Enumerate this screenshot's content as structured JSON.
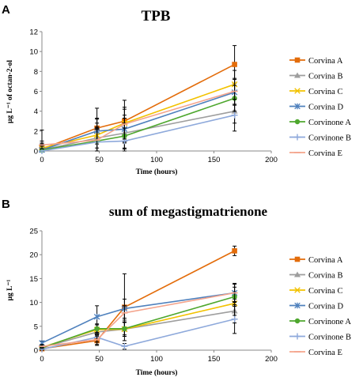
{
  "chart_data": [
    {
      "panel": "A",
      "type": "line",
      "title": "TPB",
      "xlabel": "Time (hours)",
      "ylabel": "μg L⁻¹ of  octan-2-ol",
      "x": [
        0,
        48,
        72,
        168
      ],
      "xlim": [
        0,
        200
      ],
      "ylim": [
        0,
        12
      ],
      "xticks": [
        "0",
        "50",
        "100",
        "150",
        "200"
      ],
      "yticks": [
        "0",
        "2",
        "4",
        "6",
        "8",
        "10",
        "12"
      ],
      "grid": false,
      "legend_position": "right",
      "series": [
        {
          "name": "Corvina A",
          "color": "#E36C0A",
          "marker": "square",
          "values": [
            0.2,
            2.3,
            3.0,
            8.7
          ],
          "err": [
            0.5,
            2.0,
            2.1,
            1.9
          ]
        },
        {
          "name": "Corvina B",
          "color": "#9E9E9E",
          "marker": "triangle",
          "values": [
            0.1,
            1.3,
            1.8,
            4.0
          ],
          "err": [
            0.4,
            1.5,
            1.5,
            1.2
          ]
        },
        {
          "name": "Corvina C",
          "color": "#F2C200",
          "marker": "x",
          "values": [
            0.3,
            1.6,
            2.8,
            6.7
          ],
          "err": [
            0.5,
            1.6,
            1.6,
            1.4
          ]
        },
        {
          "name": "Corvina D",
          "color": "#4F81BD",
          "marker": "star",
          "values": [
            0.1,
            2.0,
            2.2,
            5.9
          ],
          "err": [
            0.4,
            1.3,
            1.4,
            1.3
          ]
        },
        {
          "name": "Corvinone A",
          "color": "#4EA72E",
          "marker": "circle",
          "values": [
            0.1,
            1.0,
            1.5,
            5.3
          ],
          "err": [
            0.4,
            1.2,
            1.3,
            1.3
          ]
        },
        {
          "name": "Corvinone B",
          "color": "#8EA9DB",
          "marker": "plus",
          "values": [
            0.0,
            0.9,
            1.0,
            3.6
          ],
          "err": [
            2.1,
            1.4,
            1.3,
            1.6
          ]
        },
        {
          "name": "Corvina E",
          "color": "#F4A48C",
          "marker": "line",
          "values": [
            0.6,
            1.1,
            2.7,
            6.0
          ],
          "err": [
            0.4,
            1.3,
            1.5,
            1.3
          ]
        }
      ]
    },
    {
      "panel": "B",
      "type": "line",
      "title": "sum of megastigmatrienone",
      "xlabel": "Time (hours)",
      "ylabel": "μg L⁻¹",
      "x": [
        0,
        48,
        72,
        168
      ],
      "xlim": [
        0,
        200
      ],
      "ylim": [
        0,
        25
      ],
      "xticks": [
        "0",
        "50",
        "100",
        "150",
        "200"
      ],
      "yticks": [
        "0",
        "5",
        "10",
        "15",
        "20",
        "25"
      ],
      "grid": false,
      "legend_position": "right",
      "series": [
        {
          "name": "Corvina A",
          "color": "#E36C0A",
          "marker": "square",
          "values": [
            0.3,
            2.0,
            9.0,
            20.8
          ],
          "err": [
            0.4,
            1.0,
            7.0,
            1.0
          ]
        },
        {
          "name": "Corvina B",
          "color": "#9E9E9E",
          "marker": "triangle",
          "values": [
            0.5,
            3.8,
            4.4,
            8.2
          ],
          "err": [
            0.4,
            1.0,
            1.5,
            2.5
          ]
        },
        {
          "name": "Corvina C",
          "color": "#F2C200",
          "marker": "x",
          "values": [
            0.6,
            4.3,
            4.4,
            9.8
          ],
          "err": [
            0.4,
            1.0,
            1.5,
            2.5
          ]
        },
        {
          "name": "Corvina D",
          "color": "#4F81BD",
          "marker": "star",
          "values": [
            1.5,
            7.0,
            8.7,
            12.0
          ],
          "err": [
            0.4,
            2.3,
            2.0,
            2.0
          ]
        },
        {
          "name": "Corvinone A",
          "color": "#4EA72E",
          "marker": "circle",
          "values": [
            0.5,
            4.5,
            4.5,
            11.2
          ],
          "err": [
            0.4,
            1.0,
            1.3,
            2.0
          ]
        },
        {
          "name": "Corvinone B",
          "color": "#8EA9DB",
          "marker": "plus",
          "values": [
            0.2,
            2.7,
            0.8,
            6.5
          ],
          "err": [
            0.4,
            1.0,
            0.6,
            3.0
          ]
        },
        {
          "name": "Corvina E",
          "color": "#F4A48C",
          "marker": "line",
          "values": [
            0.8,
            2.2,
            7.8,
            12.0
          ],
          "err": [
            0.4,
            1.0,
            1.5,
            1.8
          ]
        }
      ]
    }
  ]
}
